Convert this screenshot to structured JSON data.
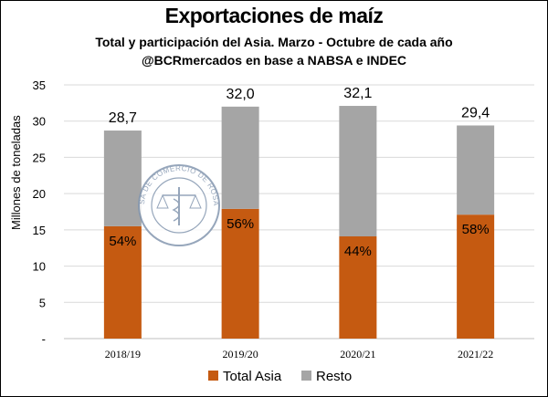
{
  "header": {
    "title": "Exportaciones de maíz",
    "subtitle": "Total y participación del Asia. Marzo - Octubre de cada año",
    "source": "@BCRmercados en base a NABSA e INDEC"
  },
  "watermark": {
    "text": "BOLSA DE COMERCIO DE ROSARIO",
    "icon": "bcr-seal-icon"
  },
  "colors": {
    "asia": "#c55a11",
    "resto": "#a5a5a5",
    "grid": "#d9d9d9"
  },
  "chart_data": {
    "type": "bar",
    "stacked": true,
    "categories": [
      "2018/19",
      "2019/20",
      "2020/21",
      "2021/22"
    ],
    "series": [
      {
        "name": "Total Asia",
        "values": [
          15.5,
          17.9,
          14.1,
          17.1
        ]
      },
      {
        "name": "Resto",
        "values": [
          13.2,
          14.1,
          18.0,
          12.3
        ]
      }
    ],
    "totals": [
      28.7,
      32.0,
      32.1,
      29.4
    ],
    "total_labels": [
      "28,7",
      "32,0",
      "32,1",
      "29,4"
    ],
    "share_labels": [
      "54%",
      "56%",
      "44%",
      "58%"
    ],
    "ylabel": "Millones de toneladas",
    "ylim": [
      0,
      35
    ],
    "yticks": [
      0,
      5,
      10,
      15,
      20,
      25,
      30,
      35
    ],
    "ytick_labels": [
      "-",
      "5",
      "10",
      "15",
      "20",
      "25",
      "30",
      "35"
    ],
    "grid": true,
    "legend_position": "bottom"
  }
}
